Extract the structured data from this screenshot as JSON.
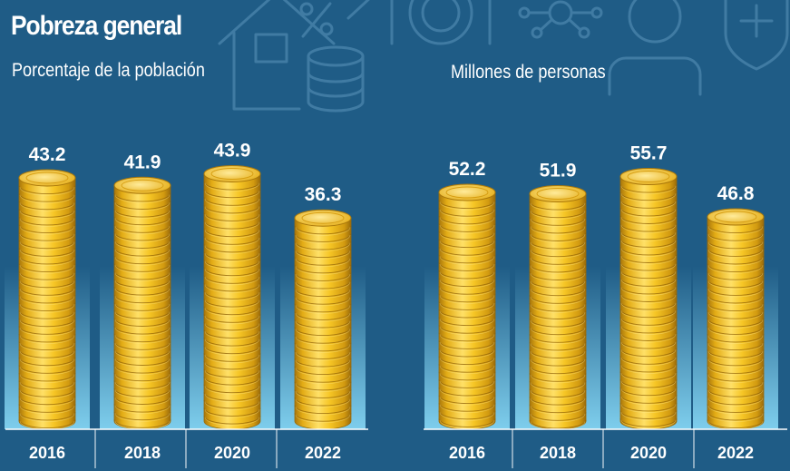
{
  "title": "Pobreza general",
  "colors": {
    "background": "#1f5c86",
    "coin_gold": "#f3c21e",
    "coin_dark": "#b3800c",
    "coin_light": "#ffe27a",
    "glow": "#8fe2ff",
    "baseline": "#ffffff"
  },
  "background_icons": [
    "house-icon",
    "percent-icon",
    "coin-stack-icon",
    "plate-icon",
    "network-icon",
    "person-icon",
    "shield-plus-icon"
  ],
  "chart_data": [
    {
      "type": "bar",
      "title": "",
      "ylabel": "Porcentaje de la población",
      "categories": [
        "2016",
        "2018",
        "2020",
        "2022"
      ],
      "values": [
        43.2,
        41.9,
        43.9,
        36.3
      ],
      "value_labels": [
        "43.2",
        "41.9",
        "43.9",
        "36.3"
      ],
      "ylim": [
        0,
        46
      ],
      "grid": false,
      "legend": "none"
    },
    {
      "type": "bar",
      "title": "",
      "ylabel": "Millones de personas",
      "categories": [
        "2016",
        "2018",
        "2020",
        "2022"
      ],
      "values": [
        52.2,
        51.9,
        55.7,
        46.8
      ],
      "value_labels": [
        "52.2",
        "51.9",
        "55.7",
        "46.8"
      ],
      "ylim": [
        0,
        59
      ],
      "grid": false,
      "legend": "none"
    }
  ]
}
